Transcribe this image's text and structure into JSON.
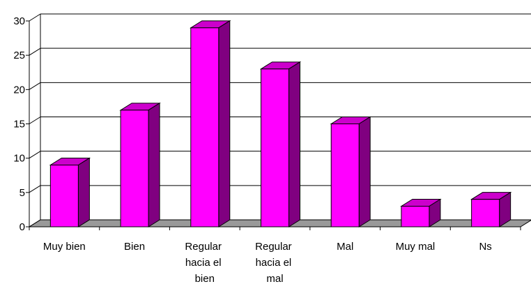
{
  "chart_data": {
    "type": "bar3d",
    "categories": [
      "Muy bien",
      "Bien",
      "Regular hacia el bien",
      "Regular hacia el mal",
      "Mal",
      "Muy mal",
      "Ns"
    ],
    "values": [
      9,
      17,
      29,
      23,
      15,
      3,
      4
    ],
    "color": "#ff00ff",
    "side_color": "#800080",
    "top_color": "#cc00cc",
    "ylim": [
      0,
      30
    ],
    "yticks": [
      0,
      5,
      10,
      15,
      20,
      25,
      30
    ],
    "grid": true
  }
}
